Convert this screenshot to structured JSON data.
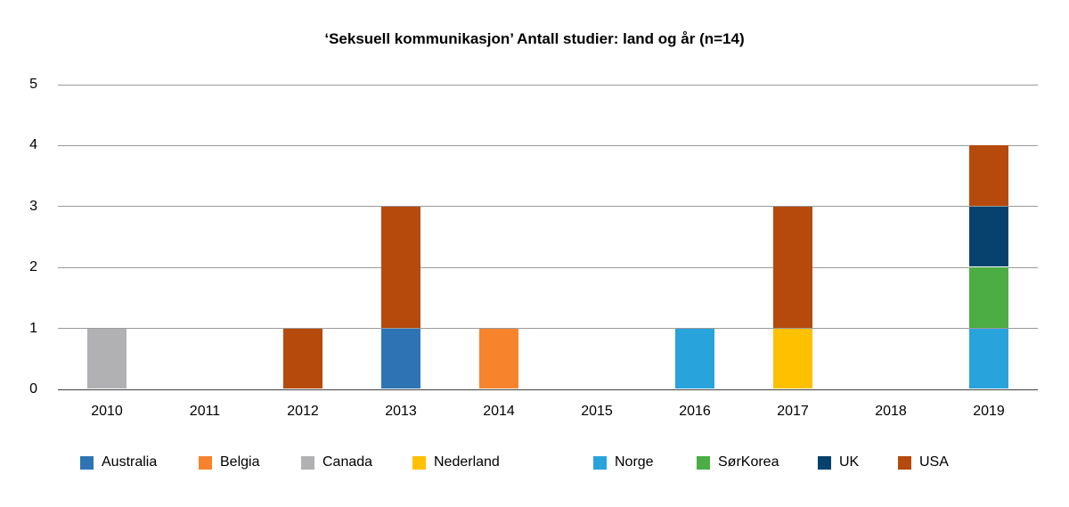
{
  "chart_data": {
    "type": "bar",
    "stacked": true,
    "title": "‘Seksuell kommunikasjon’ Antall studier: land og år (n=14)",
    "categories": [
      "2010",
      "2011",
      "2012",
      "2013",
      "2014",
      "2015",
      "2016",
      "2017",
      "2018",
      "2019"
    ],
    "series": [
      {
        "name": "Australia",
        "color": "#2E74B5",
        "values": [
          0,
          0,
          0,
          1,
          0,
          0,
          0,
          0,
          0,
          0
        ]
      },
      {
        "name": "Belgia",
        "color": "#F8832D",
        "values": [
          0,
          0,
          0,
          0,
          1,
          0,
          0,
          0,
          0,
          0
        ]
      },
      {
        "name": "Canada",
        "color": "#B1B1B3",
        "values": [
          1,
          0,
          0,
          0,
          0,
          0,
          0,
          0,
          0,
          0
        ]
      },
      {
        "name": "Nederland",
        "color": "#FFC000",
        "values": [
          0,
          0,
          0,
          0,
          0,
          0,
          0,
          1,
          0,
          0
        ]
      },
      {
        "name": "Norge",
        "color": "#29A3DC",
        "values": [
          0,
          0,
          0,
          0,
          0,
          0,
          1,
          0,
          0,
          1
        ]
      },
      {
        "name": "SørKorea",
        "color": "#4BAD44",
        "values": [
          0,
          0,
          0,
          0,
          0,
          0,
          0,
          0,
          0,
          1
        ]
      },
      {
        "name": "UK",
        "color": "#07426F",
        "values": [
          0,
          0,
          0,
          0,
          0,
          0,
          0,
          0,
          0,
          1
        ]
      },
      {
        "name": "USA",
        "color": "#B54A0C",
        "values": [
          0,
          0,
          1,
          2,
          0,
          0,
          0,
          2,
          0,
          1
        ]
      }
    ],
    "ylim": [
      0,
      5
    ],
    "y_ticks": [
      0,
      1,
      2,
      3,
      4,
      5
    ],
    "grid": "horizontal",
    "legend_position": "bottom",
    "total_n": 14,
    "colors": {
      "gridline": "#9a9a9a",
      "axis": "#404040",
      "text": "#000000",
      "background": "#ffffff"
    }
  }
}
